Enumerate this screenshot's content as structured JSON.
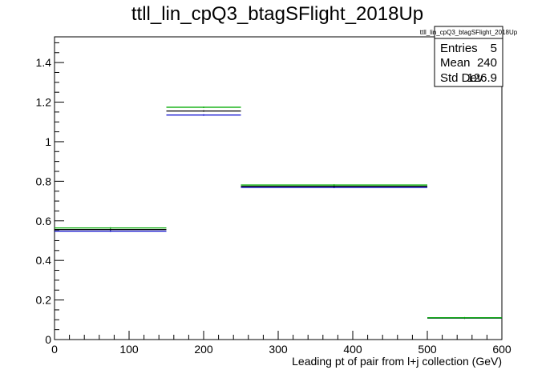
{
  "chart_data": {
    "type": "step-histogram",
    "title": "ttll_lin_cpQ3_btagSFlight_2018Up",
    "xlabel": "Leading pt of pair from l+j collection (GeV)",
    "ylabel": "",
    "xlim": [
      0,
      600
    ],
    "ylim": [
      0,
      1.53
    ],
    "x_ticks": [
      0,
      100,
      200,
      300,
      400,
      500,
      600
    ],
    "x_tick_labels": [
      "0",
      "100",
      "200",
      "300",
      "400",
      "500",
      "600"
    ],
    "y_ticks": [
      0,
      0.2,
      0.4,
      0.6,
      0.8,
      1,
      1.2,
      1.4
    ],
    "y_tick_labels": [
      "0",
      "0.2",
      "0.4",
      "0.6",
      "0.8",
      "1",
      "1.2",
      "1.4"
    ],
    "bin_edges": [
      0,
      150,
      250,
      500,
      600
    ],
    "series": [
      {
        "color": "#0000cc",
        "values": [
          0.548,
          1.135,
          0.769,
          0.109
        ]
      },
      {
        "color": "#000000",
        "values": [
          0.556,
          1.155,
          0.774,
          0.109
        ]
      },
      {
        "color": "#00aa00",
        "values": [
          0.564,
          1.174,
          0.781,
          0.11
        ]
      }
    ],
    "grid": false,
    "stats_box": {
      "title": "ttll_lin_cpQ3_btagSFlight_2018Up",
      "rows": [
        {
          "label": "Entries",
          "value": "5"
        },
        {
          "label": "Mean",
          "value": "240"
        },
        {
          "label": "Std Dev",
          "value": "126.9"
        }
      ]
    }
  }
}
